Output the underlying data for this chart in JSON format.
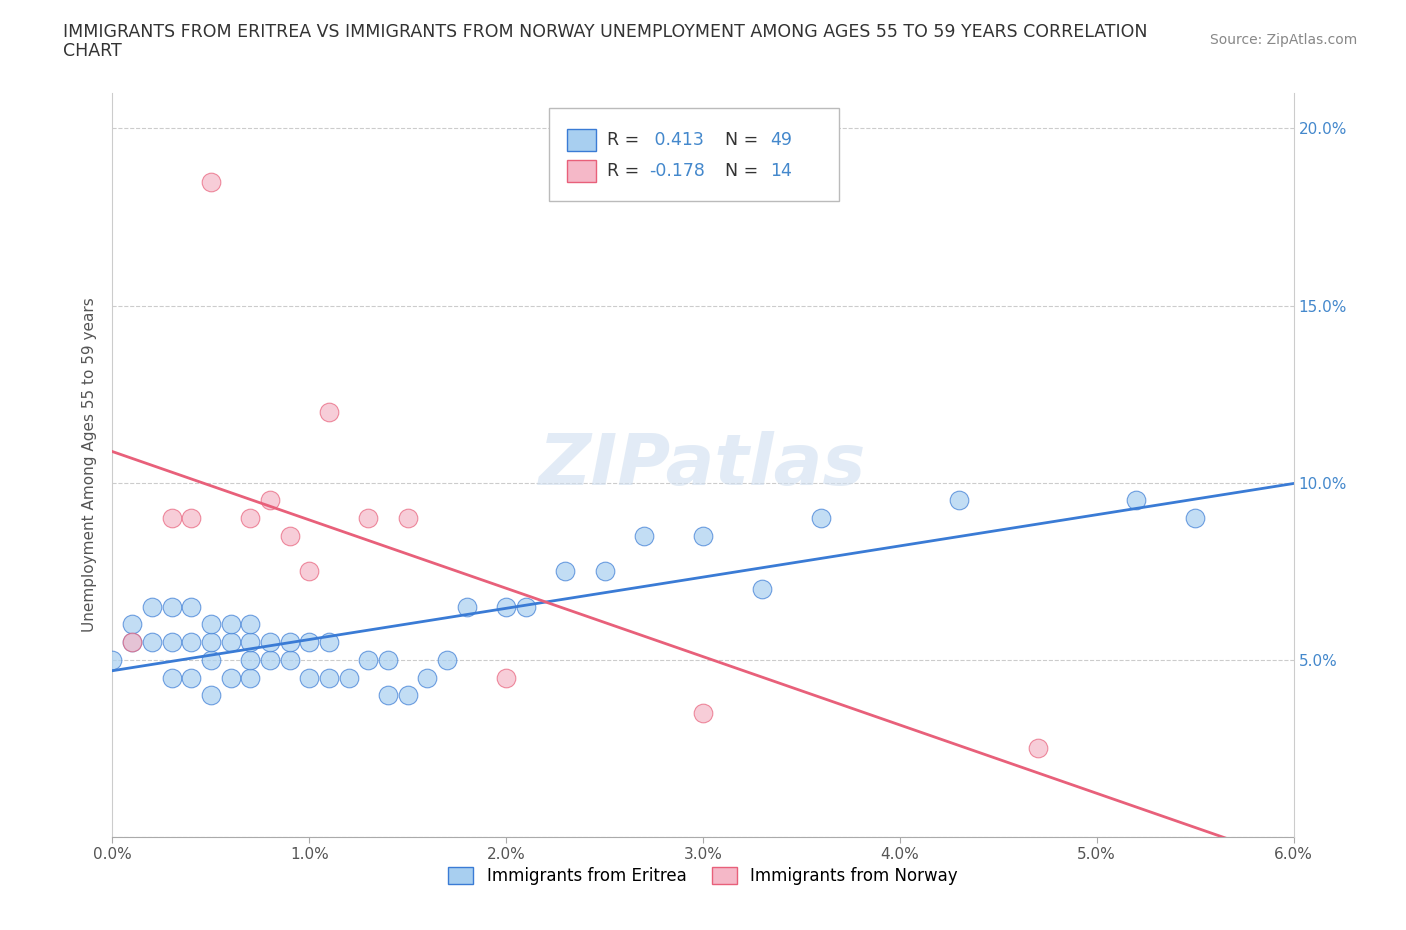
{
  "title_line1": "IMMIGRANTS FROM ERITREA VS IMMIGRANTS FROM NORWAY UNEMPLOYMENT AMONG AGES 55 TO 59 YEARS CORRELATION",
  "title_line2": "CHART",
  "source_text": "Source: ZipAtlas.com",
  "ylabel": "Unemployment Among Ages 55 to 59 years",
  "xlim": [
    0.0,
    0.06
  ],
  "ylim": [
    0.0,
    0.21
  ],
  "xticks": [
    0.0,
    0.01,
    0.02,
    0.03,
    0.04,
    0.05,
    0.06
  ],
  "xtick_labels": [
    "0.0%",
    "1.0%",
    "2.0%",
    "3.0%",
    "4.0%",
    "5.0%",
    "6.0%"
  ],
  "yticks": [
    0.0,
    0.05,
    0.1,
    0.15,
    0.2
  ],
  "ytick_labels_left": [
    "",
    "",
    "",
    "",
    ""
  ],
  "ytick_labels_right": [
    "",
    "5.0%",
    "10.0%",
    "15.0%",
    "20.0%"
  ],
  "r_eritrea": 0.413,
  "n_eritrea": 49,
  "r_norway": -0.178,
  "n_norway": 14,
  "color_eritrea": "#a8cff0",
  "color_norway": "#f5b8c8",
  "line_color_eritrea": "#3a7bd5",
  "line_color_norway": "#e8607a",
  "right_tick_color": "#4488cc",
  "background_color": "#ffffff",
  "eritrea_x": [
    0.0,
    0.001,
    0.001,
    0.002,
    0.002,
    0.003,
    0.003,
    0.003,
    0.004,
    0.004,
    0.004,
    0.005,
    0.005,
    0.005,
    0.005,
    0.006,
    0.006,
    0.006,
    0.007,
    0.007,
    0.007,
    0.007,
    0.008,
    0.008,
    0.009,
    0.009,
    0.01,
    0.01,
    0.011,
    0.011,
    0.012,
    0.013,
    0.014,
    0.014,
    0.015,
    0.016,
    0.017,
    0.018,
    0.02,
    0.021,
    0.023,
    0.025,
    0.027,
    0.03,
    0.033,
    0.036,
    0.043,
    0.052,
    0.055
  ],
  "eritrea_y": [
    0.05,
    0.055,
    0.06,
    0.055,
    0.065,
    0.045,
    0.055,
    0.065,
    0.045,
    0.055,
    0.065,
    0.04,
    0.05,
    0.055,
    0.06,
    0.045,
    0.055,
    0.06,
    0.045,
    0.05,
    0.055,
    0.06,
    0.05,
    0.055,
    0.05,
    0.055,
    0.045,
    0.055,
    0.045,
    0.055,
    0.045,
    0.05,
    0.04,
    0.05,
    0.04,
    0.045,
    0.05,
    0.065,
    0.065,
    0.065,
    0.075,
    0.075,
    0.085,
    0.085,
    0.07,
    0.09,
    0.095,
    0.095,
    0.09
  ],
  "norway_x": [
    0.001,
    0.003,
    0.004,
    0.005,
    0.007,
    0.008,
    0.009,
    0.01,
    0.011,
    0.013,
    0.015,
    0.02,
    0.03,
    0.047
  ],
  "norway_y": [
    0.055,
    0.09,
    0.09,
    0.185,
    0.09,
    0.095,
    0.085,
    0.075,
    0.12,
    0.09,
    0.09,
    0.045,
    0.035,
    0.025
  ]
}
